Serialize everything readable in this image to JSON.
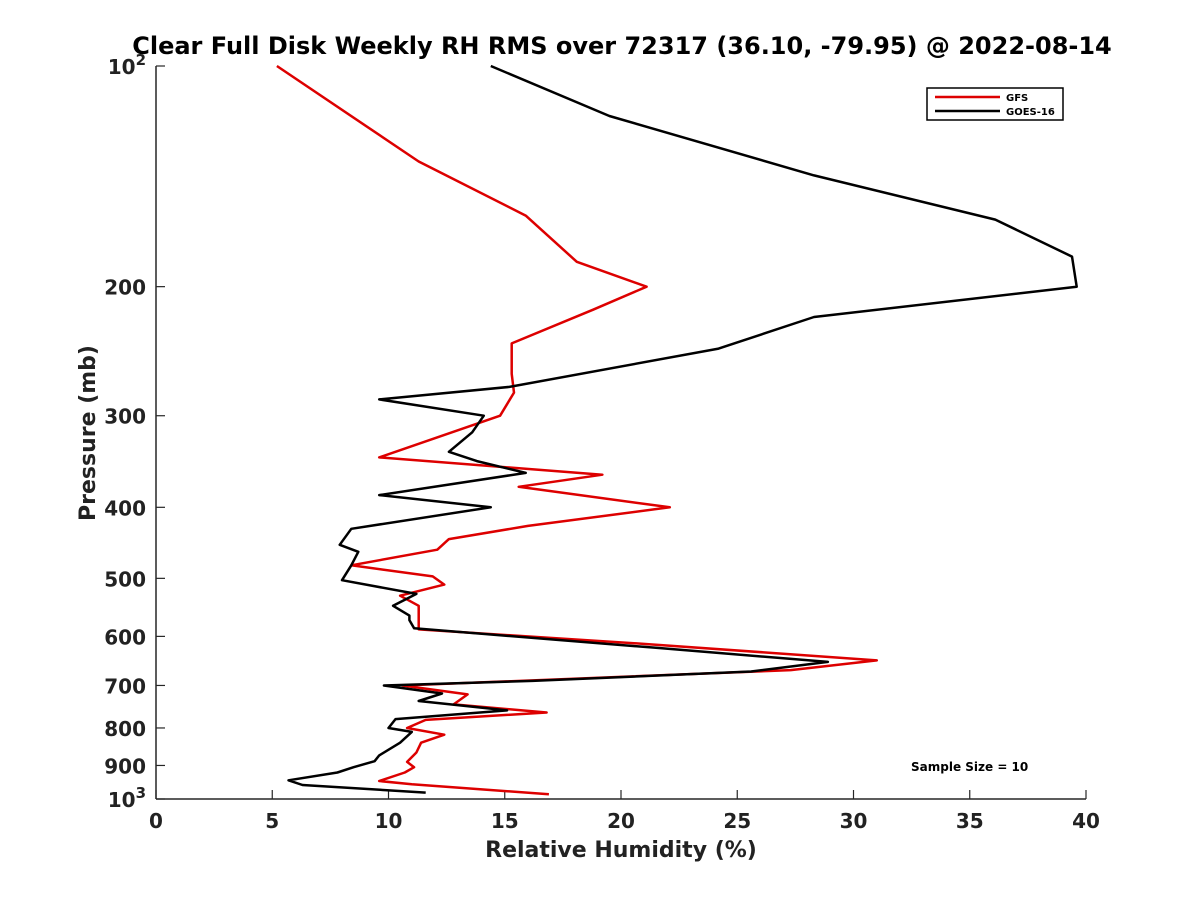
{
  "chart_data": {
    "type": "line",
    "title": "Clear Full Disk Weekly RH RMS over 72317 (36.10, -79.95) @ 2022-08-14",
    "xlabel": "Relative Humidity (%)",
    "ylabel": "Pressure (mb)",
    "xlim": [
      0,
      40
    ],
    "ylim": [
      100,
      1000
    ],
    "y_scale": "log",
    "y_reversed": true,
    "x_ticks": [
      0,
      5,
      10,
      15,
      20,
      25,
      30,
      35,
      40
    ],
    "y_ticks": [
      {
        "value": 100,
        "base": "10",
        "exp": "2"
      },
      {
        "value": 200,
        "label": "200"
      },
      {
        "value": 300,
        "label": "300"
      },
      {
        "value": 400,
        "label": "400"
      },
      {
        "value": 500,
        "label": "500"
      },
      {
        "value": 600,
        "label": "600"
      },
      {
        "value": 700,
        "label": "700"
      },
      {
        "value": 800,
        "label": "800"
      },
      {
        "value": 900,
        "label": "900"
      },
      {
        "value": 1000,
        "base": "10",
        "exp": "3"
      }
    ],
    "grid": false,
    "legend_position": "top-right",
    "annotation": "Sample Size = 10",
    "series": [
      {
        "name": "GFS",
        "color": "#dd0000",
        "points": [
          [
            5.2,
            100
          ],
          [
            11.3,
            135
          ],
          [
            15.9,
            160
          ],
          [
            18.1,
            185
          ],
          [
            21.1,
            200
          ],
          [
            18.8,
            215
          ],
          [
            15.3,
            239
          ],
          [
            15.3,
            263
          ],
          [
            15.4,
            279
          ],
          [
            14.8,
            300
          ],
          [
            9.6,
            342
          ],
          [
            19.2,
            361
          ],
          [
            15.6,
            375
          ],
          [
            22.1,
            400
          ],
          [
            16.0,
            424
          ],
          [
            12.6,
            442
          ],
          [
            12.1,
            457
          ],
          [
            8.4,
            480
          ],
          [
            11.9,
            497
          ],
          [
            12.4,
            510
          ],
          [
            10.5,
            528
          ],
          [
            11.3,
            545
          ],
          [
            11.3,
            562
          ],
          [
            11.3,
            587
          ],
          [
            21.2,
            615
          ],
          [
            31.0,
            647
          ],
          [
            27.3,
            667
          ],
          [
            10.6,
            700
          ],
          [
            13.4,
            720
          ],
          [
            12.8,
            743
          ],
          [
            16.8,
            762
          ],
          [
            11.6,
            780
          ],
          [
            10.8,
            800
          ],
          [
            12.4,
            817
          ],
          [
            11.4,
            838
          ],
          [
            11.2,
            864
          ],
          [
            10.8,
            890
          ],
          [
            11.1,
            905
          ],
          [
            10.7,
            920
          ],
          [
            9.6,
            945
          ],
          [
            11.0,
            955
          ],
          [
            16.9,
            985
          ]
        ]
      },
      {
        "name": "GOES-16",
        "color": "#000000",
        "points": [
          [
            14.4,
            100
          ],
          [
            19.5,
            117
          ],
          [
            28.3,
            141
          ],
          [
            36.1,
            162
          ],
          [
            39.4,
            182
          ],
          [
            39.6,
            200
          ],
          [
            28.3,
            220
          ],
          [
            24.2,
            243
          ],
          [
            15.2,
            274
          ],
          [
            9.6,
            285
          ],
          [
            14.1,
            300
          ],
          [
            13.6,
            316
          ],
          [
            12.6,
            336
          ],
          [
            13.8,
            346
          ],
          [
            15.9,
            359
          ],
          [
            9.6,
            385
          ],
          [
            14.4,
            400
          ],
          [
            8.4,
            428
          ],
          [
            7.9,
            450
          ],
          [
            8.7,
            460
          ],
          [
            8.4,
            480
          ],
          [
            8.0,
            503
          ],
          [
            11.2,
            525
          ],
          [
            10.2,
            545
          ],
          [
            10.9,
            562
          ],
          [
            10.9,
            570
          ],
          [
            11.1,
            585
          ],
          [
            21.5,
            622
          ],
          [
            28.9,
            650
          ],
          [
            25.6,
            670
          ],
          [
            16.2,
            690
          ],
          [
            9.8,
            700
          ],
          [
            12.3,
            718
          ],
          [
            11.3,
            735
          ],
          [
            15.1,
            757
          ],
          [
            10.3,
            778
          ],
          [
            10.0,
            800
          ],
          [
            11.0,
            810
          ],
          [
            10.5,
            838
          ],
          [
            9.6,
            872
          ],
          [
            9.4,
            888
          ],
          [
            8.5,
            905
          ],
          [
            7.8,
            920
          ],
          [
            5.7,
            943
          ],
          [
            6.3,
            957
          ],
          [
            11.6,
            980
          ]
        ]
      }
    ]
  }
}
